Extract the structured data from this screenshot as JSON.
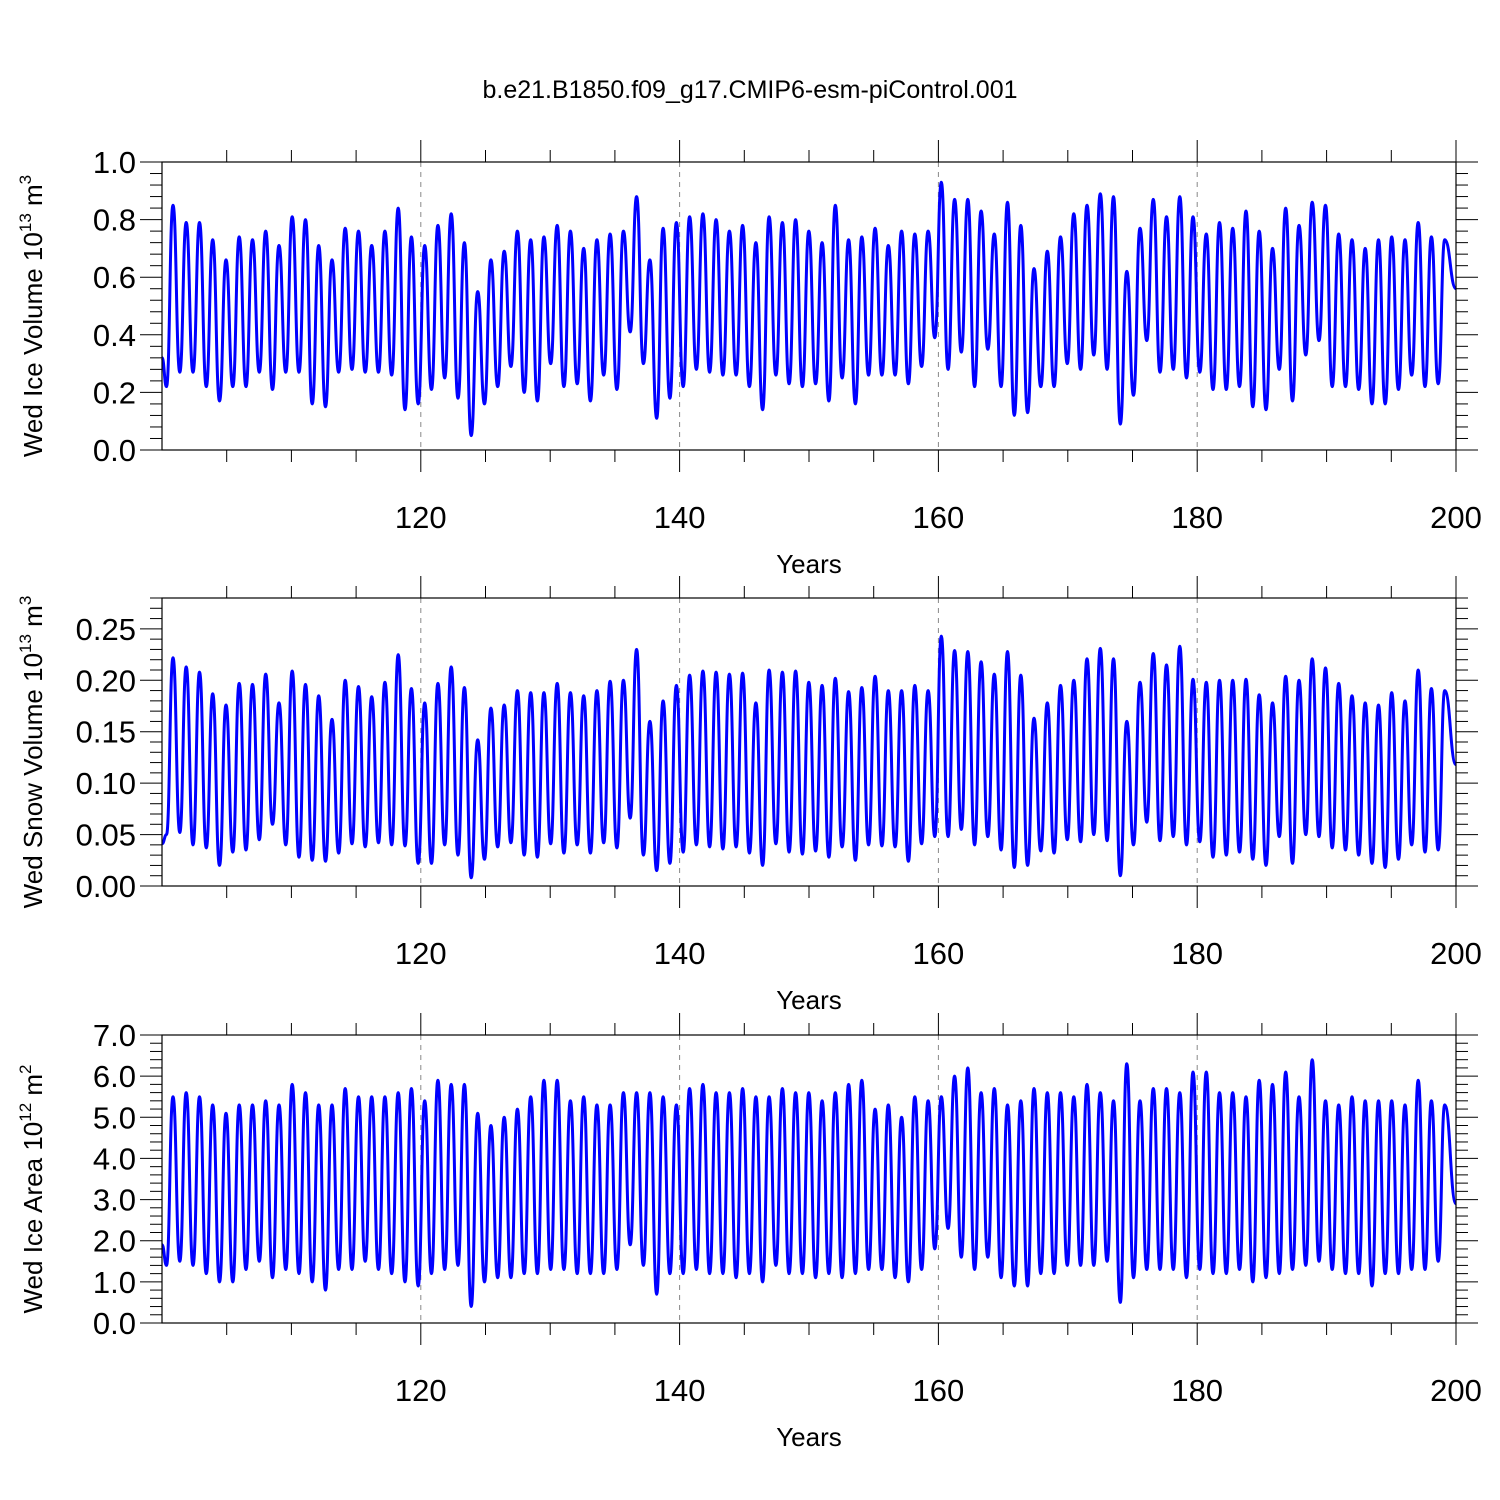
{
  "figure": {
    "title": "b.e21.B1850.f09_g17.CMIP6-esm-piControl.001"
  },
  "colors": {
    "series": "#0000ff",
    "axis": "#000000",
    "gridline": "#888888"
  },
  "chart_data": [
    {
      "type": "line",
      "ylabel_main": "Wed Ice Volume 10",
      "ylabel_exp": "13",
      "ylabel_unit": " m",
      "ylabel_unit_exp": "3",
      "xlabel": "Years",
      "xlim": [
        100,
        200
      ],
      "ylim": [
        0,
        1.0
      ],
      "xticks": [
        "120",
        "140",
        "160",
        "180",
        "200"
      ],
      "xtick_values": [
        120,
        140,
        160,
        180,
        200
      ],
      "yticks": [
        "0.0",
        "0.2",
        "0.4",
        "0.6",
        "0.8",
        "1.0"
      ],
      "ytick_values": [
        0,
        0.2,
        0.4,
        0.6,
        0.8,
        1.0
      ],
      "grid": "dashed vertical at major x ticks",
      "series": [
        {
          "maxima": [
            0.85,
            0.79,
            0.79,
            0.73,
            0.66,
            0.74,
            0.73,
            0.76,
            0.71,
            0.81,
            0.8,
            0.71,
            0.66,
            0.77,
            0.76,
            0.71,
            0.76,
            0.84,
            0.74,
            0.71,
            0.78,
            0.82,
            0.72,
            0.55,
            0.66,
            0.69,
            0.76,
            0.73,
            0.74,
            0.78,
            0.76,
            0.7,
            0.73,
            0.75,
            0.76,
            0.88,
            0.66,
            0.77,
            0.79,
            0.81,
            0.82,
            0.8,
            0.76,
            0.78,
            0.72,
            0.81,
            0.79,
            0.8,
            0.76,
            0.72,
            0.85,
            0.73,
            0.74,
            0.77,
            0.71,
            0.76,
            0.75,
            0.76,
            0.93,
            0.87,
            0.87,
            0.83,
            0.75,
            0.86,
            0.78,
            0.63,
            0.69,
            0.74,
            0.82,
            0.85,
            0.89,
            0.88,
            0.62,
            0.77,
            0.87,
            0.81,
            0.88,
            0.81,
            0.75,
            0.79,
            0.77,
            0.83,
            0.76,
            0.7,
            0.84,
            0.78,
            0.86,
            0.85,
            0.75,
            0.73,
            0.7,
            0.73,
            0.74,
            0.73,
            0.79,
            0.74,
            0.73
          ],
          "minima": [
            0.22,
            0.27,
            0.27,
            0.22,
            0.17,
            0.22,
            0.22,
            0.27,
            0.21,
            0.27,
            0.27,
            0.16,
            0.15,
            0.27,
            0.28,
            0.27,
            0.27,
            0.26,
            0.14,
            0.16,
            0.21,
            0.25,
            0.18,
            0.05,
            0.16,
            0.22,
            0.29,
            0.2,
            0.17,
            0.3,
            0.22,
            0.23,
            0.17,
            0.26,
            0.21,
            0.41,
            0.3,
            0.11,
            0.18,
            0.22,
            0.28,
            0.27,
            0.26,
            0.26,
            0.22,
            0.14,
            0.26,
            0.23,
            0.22,
            0.23,
            0.17,
            0.25,
            0.16,
            0.26,
            0.26,
            0.26,
            0.23,
            0.29,
            0.39,
            0.28,
            0.34,
            0.22,
            0.35,
            0.22,
            0.12,
            0.13,
            0.22,
            0.22,
            0.3,
            0.28,
            0.33,
            0.28,
            0.09,
            0.19,
            0.38,
            0.27,
            0.28,
            0.25,
            0.27,
            0.21,
            0.21,
            0.22,
            0.15,
            0.14,
            0.28,
            0.17,
            0.33,
            0.38,
            0.22,
            0.22,
            0.21,
            0.16,
            0.16,
            0.21,
            0.26,
            0.22,
            0.23
          ],
          "start": 0.32,
          "end": 0.56
        }
      ]
    },
    {
      "type": "line",
      "ylabel_main": "Wed Snow Volume 10",
      "ylabel_exp": "13",
      "ylabel_unit": " m",
      "ylabel_unit_exp": "3",
      "xlabel": "Years",
      "xlim": [
        100,
        200
      ],
      "ylim": [
        0,
        0.28
      ],
      "xticks": [
        "120",
        "140",
        "160",
        "180",
        "200"
      ],
      "xtick_values": [
        120,
        140,
        160,
        180,
        200
      ],
      "yticks": [
        "0.00",
        "0.05",
        "0.10",
        "0.15",
        "0.20",
        "0.25"
      ],
      "ytick_values": [
        0,
        0.05,
        0.1,
        0.15,
        0.2,
        0.25
      ],
      "grid": "dashed vertical at major x ticks",
      "series": [
        {
          "maxima": [
            0.222,
            0.213,
            0.208,
            0.187,
            0.176,
            0.197,
            0.196,
            0.206,
            0.178,
            0.209,
            0.196,
            0.185,
            0.162,
            0.2,
            0.194,
            0.184,
            0.198,
            0.225,
            0.192,
            0.178,
            0.197,
            0.213,
            0.193,
            0.142,
            0.173,
            0.176,
            0.19,
            0.188,
            0.188,
            0.197,
            0.188,
            0.185,
            0.19,
            0.199,
            0.2,
            0.23,
            0.16,
            0.18,
            0.195,
            0.205,
            0.209,
            0.208,
            0.206,
            0.207,
            0.178,
            0.21,
            0.208,
            0.209,
            0.198,
            0.195,
            0.202,
            0.189,
            0.193,
            0.204,
            0.19,
            0.19,
            0.195,
            0.19,
            0.243,
            0.229,
            0.228,
            0.218,
            0.206,
            0.228,
            0.205,
            0.163,
            0.178,
            0.195,
            0.2,
            0.221,
            0.231,
            0.221,
            0.16,
            0.198,
            0.226,
            0.215,
            0.233,
            0.201,
            0.198,
            0.2,
            0.2,
            0.201,
            0.186,
            0.178,
            0.204,
            0.2,
            0.221,
            0.212,
            0.197,
            0.185,
            0.178,
            0.176,
            0.188,
            0.18,
            0.21,
            0.192,
            0.19
          ],
          "minima": [
            0.05,
            0.052,
            0.04,
            0.037,
            0.02,
            0.033,
            0.035,
            0.045,
            0.06,
            0.04,
            0.028,
            0.025,
            0.024,
            0.032,
            0.041,
            0.038,
            0.042,
            0.04,
            0.039,
            0.022,
            0.022,
            0.04,
            0.03,
            0.008,
            0.026,
            0.038,
            0.042,
            0.03,
            0.028,
            0.041,
            0.032,
            0.04,
            0.032,
            0.042,
            0.037,
            0.066,
            0.03,
            0.015,
            0.022,
            0.033,
            0.04,
            0.038,
            0.036,
            0.038,
            0.032,
            0.02,
            0.041,
            0.033,
            0.031,
            0.034,
            0.028,
            0.038,
            0.025,
            0.04,
            0.039,
            0.038,
            0.024,
            0.041,
            0.048,
            0.048,
            0.055,
            0.04,
            0.048,
            0.035,
            0.018,
            0.02,
            0.034,
            0.032,
            0.045,
            0.043,
            0.05,
            0.044,
            0.01,
            0.04,
            0.062,
            0.044,
            0.048,
            0.04,
            0.043,
            0.028,
            0.03,
            0.033,
            0.026,
            0.02,
            0.048,
            0.022,
            0.05,
            0.048,
            0.037,
            0.035,
            0.03,
            0.022,
            0.018,
            0.026,
            0.04,
            0.033,
            0.035
          ],
          "start": 0.041,
          "end": 0.118
        }
      ]
    },
    {
      "type": "line",
      "ylabel_main": "Wed Ice Area 10",
      "ylabel_exp": "12",
      "ylabel_unit": " m",
      "ylabel_unit_exp": "2",
      "xlabel": "Years",
      "xlim": [
        100,
        200
      ],
      "ylim": [
        0,
        7.0
      ],
      "xticks": [
        "120",
        "140",
        "160",
        "180",
        "200"
      ],
      "xtick_values": [
        120,
        140,
        160,
        180,
        200
      ],
      "yticks": [
        "0.0",
        "1.0",
        "2.0",
        "3.0",
        "4.0",
        "5.0",
        "6.0",
        "7.0"
      ],
      "ytick_values": [
        0,
        1,
        2,
        3,
        4,
        5,
        6,
        7
      ],
      "grid": "dashed vertical at major x ticks",
      "series": [
        {
          "maxima": [
            5.5,
            5.6,
            5.5,
            5.3,
            5.1,
            5.3,
            5.3,
            5.4,
            5.3,
            5.8,
            5.6,
            5.3,
            5.3,
            5.7,
            5.5,
            5.5,
            5.5,
            5.6,
            5.7,
            5.4,
            5.9,
            5.8,
            5.8,
            5.1,
            4.8,
            5.0,
            5.2,
            5.5,
            5.9,
            5.9,
            5.4,
            5.5,
            5.3,
            5.3,
            5.6,
            5.6,
            5.6,
            5.5,
            5.3,
            5.7,
            5.8,
            5.6,
            5.6,
            5.7,
            5.5,
            5.5,
            5.7,
            5.6,
            5.6,
            5.4,
            5.6,
            5.8,
            5.9,
            5.2,
            5.3,
            5.0,
            5.5,
            5.4,
            5.5,
            6.0,
            6.2,
            5.6,
            5.7,
            5.3,
            5.4,
            5.7,
            5.6,
            5.6,
            5.5,
            5.8,
            5.6,
            5.4,
            6.3,
            5.4,
            5.7,
            5.7,
            5.6,
            6.1,
            6.1,
            5.6,
            5.6,
            5.5,
            5.9,
            5.8,
            6.1,
            5.5,
            6.4,
            5.4,
            5.3,
            5.5,
            5.4,
            5.4,
            5.4,
            5.3,
            5.9,
            5.4,
            5.3
          ],
          "minima": [
            1.4,
            1.5,
            1.4,
            1.2,
            1.0,
            1.0,
            1.3,
            1.5,
            1.1,
            1.3,
            1.2,
            1.0,
            0.8,
            1.3,
            1.3,
            1.5,
            1.3,
            1.2,
            1.0,
            0.9,
            1.2,
            1.3,
            1.4,
            0.4,
            1.0,
            1.1,
            1.1,
            1.2,
            1.2,
            1.3,
            1.3,
            1.2,
            1.2,
            1.2,
            1.3,
            1.9,
            1.4,
            0.7,
            1.2,
            1.2,
            1.3,
            1.2,
            1.2,
            1.1,
            1.2,
            1.0,
            1.4,
            1.2,
            1.2,
            1.1,
            1.2,
            1.1,
            1.2,
            1.3,
            1.3,
            1.1,
            1.0,
            1.3,
            1.8,
            2.3,
            1.6,
            1.3,
            1.6,
            1.1,
            0.9,
            0.9,
            1.2,
            1.2,
            1.4,
            1.4,
            1.4,
            1.5,
            0.5,
            1.1,
            1.3,
            1.3,
            1.3,
            1.1,
            1.3,
            1.2,
            1.2,
            1.3,
            1.0,
            1.1,
            1.2,
            1.3,
            1.4,
            1.5,
            1.3,
            1.2,
            1.2,
            0.9,
            1.2,
            1.2,
            1.3,
            1.3,
            1.5
          ],
          "start": 1.9,
          "end": 2.9
        }
      ]
    }
  ]
}
